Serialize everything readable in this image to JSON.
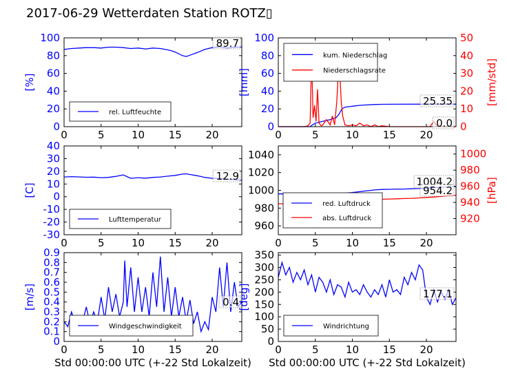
{
  "title": "2017-06-29 Wetterdaten Station ROTZ▯",
  "colors": {
    "primary": "#0000ff",
    "secondary": "#ff0000",
    "light": "#8080ff"
  },
  "chart_data": [
    {
      "type": "line",
      "ylabel": "[%]",
      "xlim": [
        0,
        24
      ],
      "ylim": [
        0,
        100
      ],
      "xticks": [
        0,
        5,
        10,
        15,
        20
      ],
      "yticks": [
        0,
        20,
        40,
        60,
        80,
        100
      ],
      "legend": "lower-left",
      "annotation": "89.7",
      "series": [
        {
          "name": "rel. Luftfeuchte",
          "axis": "left",
          "color": "#0000ff",
          "x": [
            0,
            0.5,
            1,
            2,
            3,
            4,
            5,
            6,
            7,
            8,
            9,
            10,
            11,
            12,
            13,
            14,
            14.5,
            15,
            15.5,
            16,
            16.5,
            17,
            17.5,
            18,
            19,
            20,
            21,
            22,
            23,
            24
          ],
          "y": [
            87,
            87.5,
            88,
            88.5,
            89,
            89,
            88.5,
            89.5,
            89.5,
            89,
            88,
            88.5,
            87.5,
            88.5,
            88,
            86.5,
            85.5,
            84,
            82,
            80,
            79,
            80.5,
            82,
            83.5,
            87,
            89,
            90,
            88.5,
            89.5,
            89.7
          ]
        }
      ]
    },
    {
      "type": "line",
      "ylabel": "[mm]",
      "ylabel_right": "[mm/std]",
      "xlim": [
        0,
        24
      ],
      "ylim": [
        0,
        100
      ],
      "ylim_right": [
        0,
        50
      ],
      "xticks": [
        0,
        5,
        10,
        15,
        20
      ],
      "yticks": [
        0,
        20,
        40,
        60,
        80,
        100
      ],
      "yticks_right": [
        0,
        10,
        20,
        30,
        40,
        50
      ],
      "legend": "upper-left",
      "annotations": [
        "25.35",
        "0.0"
      ],
      "series": [
        {
          "name": "kum. Niederschlag",
          "axis": "left",
          "color": "#0000ff",
          "x": [
            0,
            4.3,
            4.6,
            5,
            5.5,
            6,
            7,
            7.8,
            8.2,
            8.6,
            9,
            10,
            11,
            12,
            13,
            14,
            16,
            20,
            24
          ],
          "y": [
            0,
            0,
            2,
            4,
            5,
            6,
            8,
            10,
            14,
            20,
            22,
            23,
            24,
            24.5,
            25,
            25.2,
            25.3,
            25.35,
            25.35
          ]
        },
        {
          "name": "Niederschlagsrate",
          "axis": "right",
          "color": "#ff0000",
          "x": [
            0,
            3.5,
            4,
            4.3,
            4.5,
            4.7,
            4.9,
            5.1,
            5.3,
            5.5,
            5.8,
            6,
            6.5,
            7,
            7.3,
            7.6,
            7.9,
            8.1,
            8.3,
            8.5,
            8.7,
            9,
            9.5,
            10,
            10.5,
            11,
            11.5,
            12,
            12.5,
            13,
            13.5,
            14,
            15,
            18,
            20.5,
            21,
            21.5,
            24
          ],
          "y": [
            0,
            0,
            0.5,
            2,
            40,
            5,
            12,
            3,
            21,
            2,
            0.5,
            1,
            4,
            1,
            6,
            1,
            14,
            30,
            31,
            14,
            6,
            1,
            0.5,
            1,
            0.5,
            2,
            0.5,
            1,
            0,
            1,
            0,
            0.5,
            0,
            0,
            0,
            3,
            0,
            0
          ]
        }
      ]
    },
    {
      "type": "line",
      "ylabel": "[C]",
      "xlim": [
        0,
        24
      ],
      "ylim": [
        -30,
        40
      ],
      "xticks": [
        0,
        5,
        10,
        15,
        20
      ],
      "yticks": [
        -30,
        -20,
        -10,
        0,
        10,
        20,
        30,
        40
      ],
      "legend": "lower-left",
      "annotation": "12.9",
      "series": [
        {
          "name": "Lufttemperatur",
          "axis": "left",
          "color": "#0000ff",
          "x": [
            0,
            1,
            2,
            3,
            4,
            5,
            6,
            7,
            8,
            8.5,
            9,
            10,
            11,
            12,
            13,
            14,
            15,
            16,
            16.5,
            17,
            18,
            19,
            20,
            21,
            22,
            23,
            24
          ],
          "y": [
            15.5,
            15.8,
            15.6,
            15.3,
            15.4,
            15.0,
            15.2,
            16.0,
            17.2,
            15.8,
            14.5,
            15.0,
            14.6,
            15.2,
            15.5,
            16.2,
            16.8,
            17.8,
            18.0,
            17.5,
            16.5,
            15.2,
            14.5,
            14.2,
            13.8,
            13.5,
            12.9
          ]
        }
      ]
    },
    {
      "type": "line",
      "ylabel_right": "[hPa]",
      "xlim": [
        0,
        24
      ],
      "ylim": [
        950,
        1050
      ],
      "ylim_right": [
        900,
        1010
      ],
      "xticks": [
        0,
        5,
        10,
        15,
        20
      ],
      "yticks": [
        960,
        980,
        1000,
        1020,
        1040
      ],
      "yticks_right": [
        920,
        940,
        960,
        980,
        1000
      ],
      "legend": "lower-left",
      "annotations": [
        "1004.2",
        "954.2"
      ],
      "series": [
        {
          "name": "red. Luftdruck",
          "axis": "left",
          "color": "#0000ff",
          "x": [
            0,
            2,
            4,
            6,
            8,
            9,
            10,
            11,
            12,
            13,
            14,
            15,
            16,
            17,
            18,
            19,
            20,
            21,
            22,
            23,
            24
          ],
          "y": [
            996,
            996,
            996,
            996,
            996.5,
            997,
            997.5,
            998.5,
            999.5,
            1000.5,
            1001,
            1001.2,
            1001.5,
            1001.5,
            1001.8,
            1002,
            1002.5,
            1003,
            1003.5,
            1004,
            1004.2
          ]
        },
        {
          "name": "abs. Luftdruck",
          "axis": "left",
          "color": "#ff0000",
          "x": [
            0,
            2,
            4,
            6,
            8,
            9,
            10,
            11,
            12,
            13,
            14,
            15,
            16,
            17,
            18,
            19,
            20,
            21,
            22,
            23,
            24
          ],
          "y": [
            985,
            984.5,
            984.5,
            984.5,
            985,
            985.5,
            986.5,
            987.5,
            988.5,
            989.5,
            990,
            990.2,
            990.5,
            990.8,
            991,
            991.5,
            992,
            992.5,
            993.2,
            994,
            994.5
          ]
        }
      ]
    },
    {
      "type": "line",
      "ylabel": "[m/s]",
      "xlabel": "Std 00:00:00 UTC (+-22 Std Lokalzeit)",
      "xlim": [
        0,
        24
      ],
      "ylim": [
        0,
        0.9
      ],
      "xticks": [
        0,
        5,
        10,
        15,
        20
      ],
      "yticks": [
        0,
        0.1,
        0.2,
        0.3,
        0.4,
        0.5,
        0.6,
        0.7,
        0.8,
        0.9
      ],
      "legend": "lower-center",
      "annotation": "0.4",
      "series": [
        {
          "name": "Windgeschwindigkeit",
          "axis": "left",
          "color": "#0000ff",
          "x": [
            0,
            0.5,
            1,
            1.5,
            2,
            2.5,
            3,
            3.5,
            4,
            4.5,
            5,
            5.5,
            6,
            6.5,
            7,
            7.5,
            8,
            8.2,
            8.5,
            9,
            9.5,
            10,
            10.5,
            11,
            11.5,
            12,
            12.5,
            13,
            13.5,
            14,
            14.5,
            15,
            15.5,
            16,
            16.5,
            17,
            17.5,
            18,
            18.5,
            19,
            19.5,
            20,
            20.5,
            21,
            21.5,
            22,
            22.5,
            23,
            23.5,
            24
          ],
          "y": [
            0.2,
            0.15,
            0.3,
            0.18,
            0.25,
            0.2,
            0.35,
            0.18,
            0.3,
            0.2,
            0.45,
            0.22,
            0.55,
            0.3,
            0.48,
            0.25,
            0.4,
            0.82,
            0.35,
            0.75,
            0.3,
            0.65,
            0.3,
            0.55,
            0.25,
            0.7,
            0.35,
            0.86,
            0.3,
            0.65,
            0.25,
            0.55,
            0.25,
            0.45,
            0.2,
            0.42,
            0.18,
            0.3,
            0.1,
            0.2,
            0.12,
            0.45,
            0.3,
            0.75,
            0.35,
            0.8,
            0.3,
            0.6,
            0.35,
            0.4
          ]
        }
      ]
    },
    {
      "type": "line",
      "ylabel": "[deg]",
      "xlabel": "Std 00:00:00 UTC (+-22 Std Lokalzeit)",
      "xlim": [
        0,
        24
      ],
      "ylim": [
        0,
        360
      ],
      "xticks": [
        0,
        5,
        10,
        15,
        20
      ],
      "yticks": [
        0,
        50,
        100,
        150,
        200,
        250,
        300,
        350
      ],
      "legend": "lower-left",
      "annotation": "177.1",
      "series": [
        {
          "name": "Windrichtung",
          "axis": "left",
          "color": "#0000ff",
          "x": [
            0,
            0.5,
            1,
            1.5,
            2,
            2.5,
            3,
            3.5,
            4,
            4.5,
            5,
            5.5,
            6,
            6.5,
            7,
            7.5,
            8,
            8.5,
            9,
            9.5,
            10,
            10.5,
            11,
            11.5,
            12,
            12.5,
            13,
            13.5,
            14,
            14.5,
            15,
            15.5,
            16,
            16.5,
            17,
            17.5,
            18,
            18.5,
            19,
            19.5,
            20,
            20.5,
            21,
            21.5,
            22,
            22.5,
            23,
            23.5,
            24
          ],
          "y": [
            260,
            320,
            270,
            300,
            240,
            280,
            250,
            290,
            230,
            270,
            200,
            260,
            240,
            200,
            250,
            190,
            230,
            220,
            180,
            240,
            200,
            210,
            190,
            230,
            200,
            180,
            210,
            190,
            230,
            180,
            250,
            200,
            210,
            190,
            260,
            230,
            280,
            250,
            310,
            290,
            180,
            150,
            210,
            160,
            200,
            170,
            210,
            150,
            177
          ]
        }
      ]
    }
  ]
}
